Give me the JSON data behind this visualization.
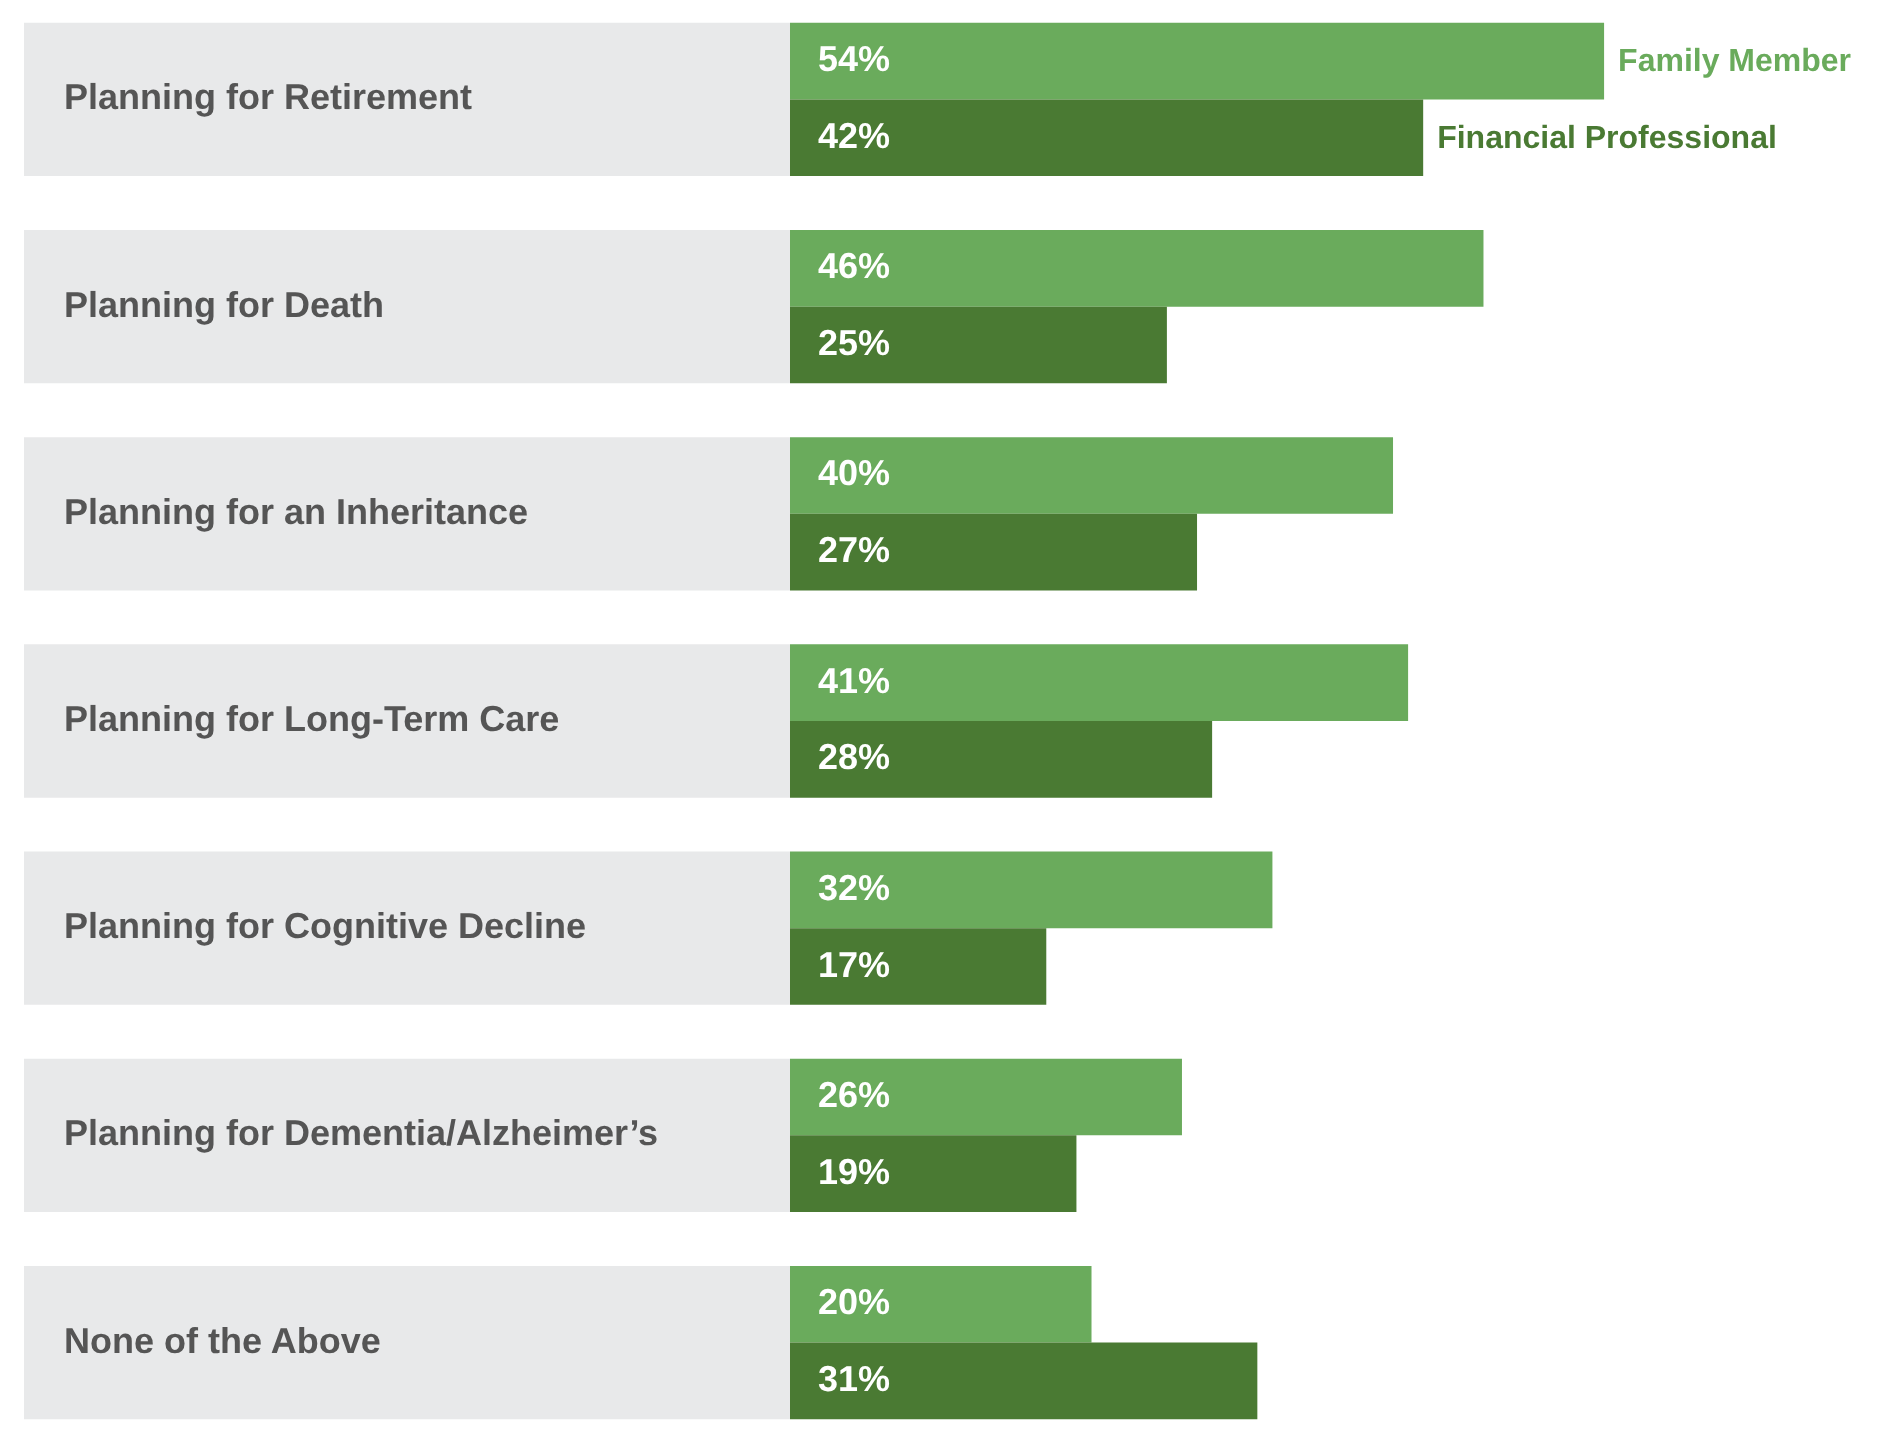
{
  "chart_data": {
    "type": "bar",
    "orientation": "horizontal",
    "categories": [
      "Planning for Retirement",
      "Planning for Death",
      "Planning for an Inheritance",
      "Planning for Long-Term Care",
      "Planning for Cognitive Decline",
      "Planning for Dementia/Alzheimer’s",
      "None of the Above"
    ],
    "series": [
      {
        "name": "Family Member",
        "color": "#6aab5c",
        "values": [
          54,
          46,
          40,
          41,
          32,
          26,
          20
        ],
        "value_labels": [
          "54%",
          "46%",
          "40%",
          "41%",
          "32%",
          "26%",
          "20%"
        ]
      },
      {
        "name": "Financial Professional",
        "color": "#4a7a33",
        "values": [
          42,
          25,
          27,
          28,
          17,
          19,
          31
        ],
        "value_labels": [
          "42%",
          "25%",
          "27%",
          "28%",
          "17%",
          "19%",
          "31%"
        ]
      }
    ],
    "xlim": [
      0,
      72.7
    ]
  }
}
